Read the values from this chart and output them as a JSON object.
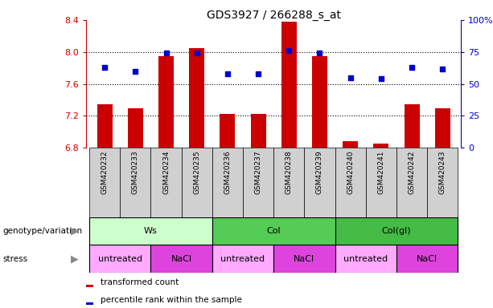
{
  "title": "GDS3927 / 266288_s_at",
  "samples": [
    "GSM420232",
    "GSM420233",
    "GSM420234",
    "GSM420235",
    "GSM420236",
    "GSM420237",
    "GSM420238",
    "GSM420239",
    "GSM420240",
    "GSM420241",
    "GSM420242",
    "GSM420243"
  ],
  "bar_values": [
    7.35,
    7.3,
    7.95,
    8.05,
    7.22,
    7.22,
    8.38,
    7.95,
    6.88,
    6.85,
    7.35,
    7.3
  ],
  "dot_values": [
    63,
    60,
    74,
    74,
    58,
    58,
    76,
    74,
    55,
    54,
    63,
    62
  ],
  "ylim_left": [
    6.8,
    8.4
  ],
  "ylim_right": [
    0,
    100
  ],
  "yticks_left": [
    6.8,
    7.2,
    7.6,
    8.0,
    8.4
  ],
  "yticks_right": [
    0,
    25,
    50,
    75,
    100
  ],
  "bar_color": "#cc0000",
  "dot_color": "#0000cc",
  "bar_width": 0.5,
  "genotype_groups": [
    {
      "label": "Ws",
      "start": 0,
      "end": 4,
      "color": "#ccffcc"
    },
    {
      "label": "Col",
      "start": 4,
      "end": 8,
      "color": "#55cc55"
    },
    {
      "label": "Col(gl)",
      "start": 8,
      "end": 12,
      "color": "#44bb44"
    }
  ],
  "stress_groups": [
    {
      "label": "untreated",
      "start": 0,
      "end": 2,
      "color": "#ffaaff"
    },
    {
      "label": "NaCl",
      "start": 2,
      "end": 4,
      "color": "#dd44dd"
    },
    {
      "label": "untreated",
      "start": 4,
      "end": 6,
      "color": "#ffaaff"
    },
    {
      "label": "NaCl",
      "start": 6,
      "end": 8,
      "color": "#dd44dd"
    },
    {
      "label": "untreated",
      "start": 8,
      "end": 10,
      "color": "#ffaaff"
    },
    {
      "label": "NaCl",
      "start": 10,
      "end": 12,
      "color": "#dd44dd"
    }
  ],
  "legend_items": [
    {
      "label": "transformed count",
      "color": "#cc0000"
    },
    {
      "label": "percentile rank within the sample",
      "color": "#0000cc"
    }
  ],
  "genotype_label": "genotype/variation",
  "stress_label": "stress",
  "tick_label_color_left": "#cc0000",
  "tick_label_color_right": "#0000cc",
  "grid_color": "black",
  "sample_bg_color": "#d0d0d0",
  "fig_width": 6.13,
  "fig_height": 3.84,
  "dpi": 100
}
